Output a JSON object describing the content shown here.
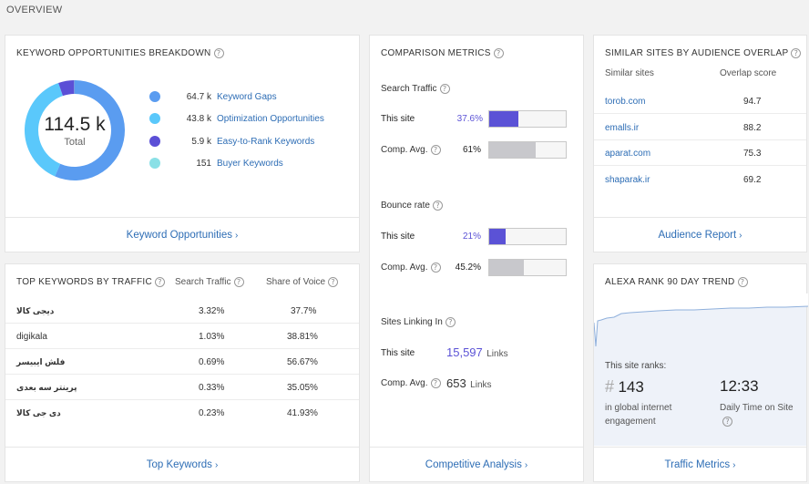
{
  "overview": "OVERVIEW",
  "colors": {
    "keyword_gaps": "#5a9cf0",
    "optimization": "#5ac8fb",
    "easy_to_rank": "#5b4fd6",
    "buyer": "#8ae0e6",
    "bar_this_site": "#5b52d6",
    "bar_comp": "#c8c8cc",
    "link": "#2d6db5"
  },
  "keyword_breakdown": {
    "title": "KEYWORD OPPORTUNITIES BREAKDOWN",
    "total_value": "114.5 k",
    "total_label": "Total",
    "items": [
      {
        "value": "64.7 k",
        "label": "Keyword Gaps",
        "amount": 64.7
      },
      {
        "value": "43.8 k",
        "label": "Optimization Opportunities",
        "amount": 43.8
      },
      {
        "value": "5.9 k",
        "label": "Easy-to-Rank Keywords",
        "amount": 5.9
      },
      {
        "value": "151",
        "label": "Buyer Keywords",
        "amount": 0.151
      }
    ],
    "footer": "Keyword Opportunities"
  },
  "comparison": {
    "title": "COMPARISON METRICS",
    "search_traffic": {
      "label": "Search Traffic",
      "this_site_label": "This site",
      "this_site_value": "37.6%",
      "this_site_fraction": 0.376,
      "comp_label": "Comp. Avg.",
      "comp_value": "61%",
      "comp_fraction": 0.61
    },
    "bounce_rate": {
      "label": "Bounce rate",
      "this_site_label": "This site",
      "this_site_value": "21%",
      "this_site_fraction": 0.21,
      "comp_label": "Comp. Avg.",
      "comp_value": "45.2%",
      "comp_fraction": 0.452
    },
    "sites_linking": {
      "label": "Sites Linking In",
      "this_site_label": "This site",
      "this_site_value": "15,597",
      "comp_label": "Comp. Avg.",
      "comp_value": "653",
      "unit": "Links"
    },
    "footer": "Competitive Analysis"
  },
  "similar_sites": {
    "title": "SIMILAR SITES BY AUDIENCE OVERLAP",
    "col_sites": "Similar sites",
    "col_score": "Overlap score",
    "rows": [
      {
        "site": "torob.com",
        "score": "94.7"
      },
      {
        "site": "emalls.ir",
        "score": "88.2"
      },
      {
        "site": "aparat.com",
        "score": "75.3"
      },
      {
        "site": "shaparak.ir",
        "score": "69.2"
      }
    ],
    "footer": "Audience Report"
  },
  "top_keywords": {
    "title": "TOP KEYWORDS BY TRAFFIC",
    "col_traffic": "Search Traffic",
    "col_voice": "Share of Voice",
    "rows": [
      {
        "keyword": "دیجی کالا",
        "traffic": "3.32%",
        "voice": "37.7%"
      },
      {
        "keyword": "digikala",
        "traffic": "1.03%",
        "voice": "38.81%"
      },
      {
        "keyword": "فلش ایبیسر",
        "traffic": "0.69%",
        "voice": "56.67%"
      },
      {
        "keyword": "پرینتر سه بعدی",
        "traffic": "0.33%",
        "voice": "35.05%"
      },
      {
        "keyword": "دی جی کالا",
        "traffic": "0.23%",
        "voice": "41.93%"
      }
    ],
    "footer": "Top Keywords"
  },
  "alexa": {
    "title": "ALEXA RANK 90 DAY TREND",
    "ranks_label": "This site ranks:",
    "rank_hash": "#",
    "rank_value": "143",
    "rank_caption": "in global internet engagement",
    "time_value": "12:33",
    "time_caption": "Daily Time on Site",
    "footer": "Traffic Metrics"
  }
}
